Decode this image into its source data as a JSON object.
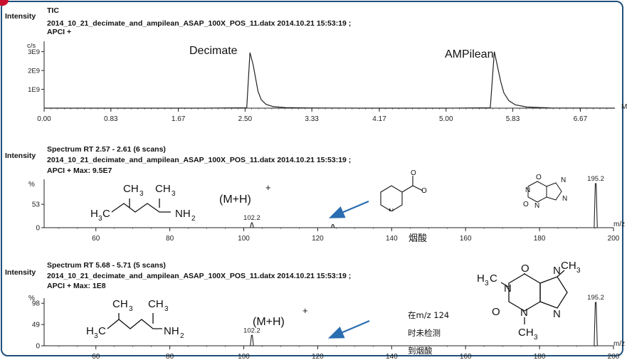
{
  "colors": {
    "frame": "#1f4f7a",
    "corner": "#c8102e",
    "arrow": "#2a6db0",
    "trace": "#222222"
  },
  "panels": [
    {
      "intensity_label": "Intensity",
      "header_line1": "TIC",
      "header_line2": "2014_10_21_decimate_and_ampilean_ASAP_100X_POS_11.datx 2014.10.21 15:53:19 ;",
      "header_line3": "APCI +",
      "y_unit": "c/s",
      "x_unit_partial": "M",
      "annotations": [
        "Decimate",
        "AMPilean"
      ]
    },
    {
      "intensity_label": "Intensity",
      "header_line1": "Spectrum RT 2.57 - 2.61 (6 scans)",
      "header_line2": "2014_10_21_decimate_and_ampilean_ASAP_100X_POS_11.datx 2014.10.21 15:53:19 ;",
      "header_line3": "APCI + Max: 9.5E7",
      "y_unit": "%",
      "x_unit_partial": "m/z",
      "mh_label": "(M+H)",
      "mh_sup": "+",
      "struct_left_ch3_a": "CH",
      "struct_left_ch3_b": "CH",
      "struct_left_sub3": "3",
      "struct_left_h3c": "H",
      "struct_left_c": "C",
      "struct_left_nh": "NH",
      "struct_left_sub2": "2",
      "niacin_oh": "O",
      "caffeine_n": "N",
      "caffeine_o": "O",
      "caffeine_ch3": "CH3",
      "caffeine_h3c": "H3C",
      "label_cn": "烟酸"
    },
    {
      "intensity_label": "Intensity",
      "header_line1": "Spectrum RT 5.68 - 5.71 (5 scans)",
      "header_line2": "2014_10_21_decimate_and_ampilean_ASAP_100X_POS_11.datx 2014.10.21 15:53:19 ;",
      "header_line3": "APCI + Max: 1E8",
      "y_unit": "%",
      "x_unit_partial": "m/z",
      "mh_label": "(M+H)",
      "mh_sup": "+",
      "struct_left_h3c": "H",
      "struct_left_c": "C",
      "struct_left_ch": "CH",
      "struct_left_sub3": "3",
      "struct_left_nh": "NH",
      "struct_left_sub2": "2",
      "caffeine_n": "N",
      "caffeine_o": "O",
      "caffeine_ch3": "CH",
      "caffeine_h3c": "H",
      "caffeine_sub3": "3",
      "caffeine_c": "C",
      "note_lines": [
        "在m/z 124",
        "时未检测",
        "到烟酸"
      ]
    }
  ],
  "chart_data": [
    {
      "type": "line",
      "title": "TIC",
      "xlabel": "",
      "ylabel": "c/s",
      "xlim": [
        0,
        7.1
      ],
      "ylim": [
        0,
        3400000000.0
      ],
      "x_ticks": [
        "0.00",
        "0.83",
        "1.67",
        "2.50",
        "3.33",
        "4.17",
        "5.00",
        "5.83",
        "6.67"
      ],
      "x_tick_values": [
        0,
        0.83,
        1.67,
        2.5,
        3.33,
        4.17,
        5.0,
        5.83,
        6.67
      ],
      "y_ticks": [
        "1E9",
        "2E9",
        "3E9"
      ],
      "y_tick_values": [
        1000000000.0,
        2000000000.0,
        3000000000.0
      ],
      "series": [
        {
          "x": [
            0,
            1.0,
            2.0,
            2.52,
            2.56,
            2.6,
            2.63,
            2.66,
            2.7,
            2.76,
            2.85,
            3.0,
            3.3,
            4.0,
            5.0,
            5.55,
            5.6,
            5.64,
            5.68,
            5.72,
            5.78,
            5.86,
            6.0,
            6.3,
            7.1
          ],
          "y": [
            0.0,
            0.0,
            0.0,
            20000000.0,
            2950000000.0,
            2300000000.0,
            1600000000.0,
            900000000.0,
            450000000.0,
            200000000.0,
            80000000.0,
            30000000.0,
            10000000.0,
            0.0,
            0.0,
            20000000.0,
            3000000000.0,
            2200000000.0,
            1400000000.0,
            800000000.0,
            400000000.0,
            180000000.0,
            60000000.0,
            10000000.0,
            0.0
          ]
        }
      ],
      "annotations": [
        {
          "text": "Decimate",
          "x": 2.57
        },
        {
          "text": "AMPilean",
          "x": 5.68
        }
      ]
    },
    {
      "type": "bar",
      "title": "Spectrum RT 2.57 - 2.61 (6 scans)",
      "xlabel": "m/z",
      "ylabel": "%",
      "xlim": [
        46,
        200
      ],
      "ylim": [
        0,
        100
      ],
      "x_ticks": [
        "60",
        "80",
        "100",
        "120",
        "140",
        "160",
        "180",
        "200"
      ],
      "y_ticks": [
        "0",
        "53",
        "%"
      ],
      "y_tick_values": [
        0,
        53
      ],
      "peaks": [
        {
          "mz": 102.2,
          "intensity": 11,
          "label": "102.2"
        },
        {
          "mz": 124.1,
          "intensity": 7
        },
        {
          "mz": 195.2,
          "intensity": 100,
          "label": "195.2"
        }
      ]
    },
    {
      "type": "bar",
      "title": "Spectrum RT 5.68 - 5.71 (5 scans)",
      "xlabel": "m/z",
      "ylabel": "%",
      "xlim": [
        46,
        200
      ],
      "ylim": [
        0,
        100
      ],
      "x_ticks": [
        "60",
        "80",
        "100",
        "120",
        "140",
        "160",
        "180",
        "200"
      ],
      "y_ticks": [
        "0",
        "49",
        "98"
      ],
      "y_tick_values": [
        0,
        49,
        98
      ],
      "peaks": [
        {
          "mz": 102.2,
          "intensity": 24,
          "label": "102.2"
        },
        {
          "mz": 195.2,
          "intensity": 100,
          "label": "195.2"
        }
      ]
    }
  ]
}
